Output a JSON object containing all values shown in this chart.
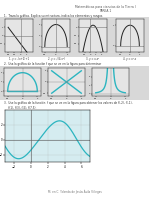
{
  "title1": "Matemáticas para ciencias de la Tierra I",
  "title2": "TAREA 1",
  "q1_text": "1.  Traza la gráfica. Explica su estructura, indica los elementos y rangos.",
  "q1_labels": [
    "1. y = -(x+2)+1",
    "2. y = sqrt(4-x^2)",
    "3. y = x-x^2",
    "4. y = x^2-x"
  ],
  "q2_text": "2.  Usa la gráfica de la función f que se ve en la figura para determinar",
  "q3_text": "3.  Use la gráfica de la función  f que se ve en la figura para obtener los valores de f(-2), f(-1),",
  "q3_text2": "     f(1), f(3), f(5), f(7.5).",
  "footer": "M. en C. Yolanda de Jesús Ávila Villegas",
  "paper_color": "#ffffff",
  "teal_color": "#2cb5c0",
  "dark_color": "#333333",
  "graph_bg": "#e0e0e0",
  "light_blue_bg": "#d5ecf0"
}
